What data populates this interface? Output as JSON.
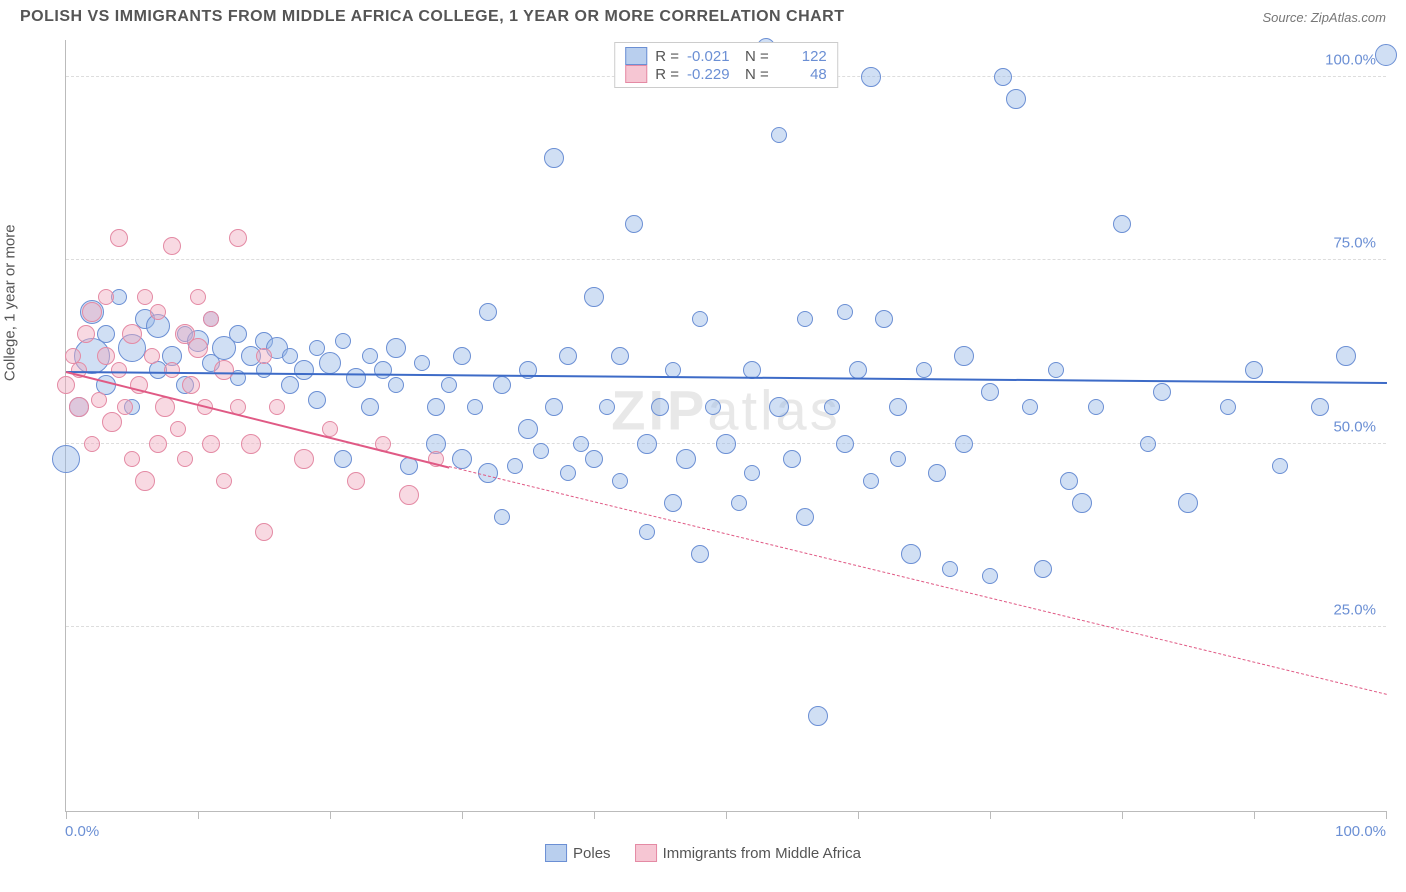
{
  "header": {
    "title": "POLISH VS IMMIGRANTS FROM MIDDLE AFRICA COLLEGE, 1 YEAR OR MORE CORRELATION CHART",
    "source_prefix": "Source: ",
    "source_name": "ZipAtlas.com"
  },
  "chart": {
    "type": "scatter",
    "y_axis_label": "College, 1 year or more",
    "watermark": "ZIPatlas",
    "background_color": "#ffffff",
    "grid_color": "#dddddd",
    "axis_color": "#bbbbbb",
    "tick_label_color": "#6b8fd4",
    "xlim": [
      0,
      100
    ],
    "ylim": [
      0,
      105
    ],
    "xticks": [
      0,
      10,
      20,
      30,
      40,
      50,
      60,
      70,
      80,
      90,
      100
    ],
    "xtick_labels": {
      "0": "0.0%",
      "100": "100.0%"
    },
    "yticks": [
      25,
      50,
      75,
      100
    ],
    "ytick_labels": {
      "25": "25.0%",
      "50": "50.0%",
      "75": "75.0%",
      "100": "100.0%"
    },
    "legend_top": {
      "rows": [
        {
          "swatch_fill": "#b9cfee",
          "swatch_stroke": "#6b8fd4",
          "r_label": "R =",
          "r_val": "-0.021",
          "n_label": "N =",
          "n_val": "122"
        },
        {
          "swatch_fill": "#f6c6d3",
          "swatch_stroke": "#e48aa4",
          "r_label": "R =",
          "r_val": "-0.229",
          "n_label": "N =",
          "n_val": "48"
        }
      ]
    },
    "legend_bottom": {
      "items": [
        {
          "swatch_fill": "#b9cfee",
          "swatch_stroke": "#6b8fd4",
          "label": "Poles"
        },
        {
          "swatch_fill": "#f6c6d3",
          "swatch_stroke": "#e48aa4",
          "label": "Immigrants from Middle Africa"
        }
      ]
    },
    "series": [
      {
        "name": "Poles",
        "color_fill": "rgba(150,185,230,0.45)",
        "color_stroke": "#6b8fd4",
        "point_stroke_width": 1.2,
        "trend_color": "#3d6bc7",
        "trend": {
          "x1": 0,
          "y1": 60,
          "x2": 100,
          "y2": 58.5,
          "dash": false
        },
        "points": [
          {
            "x": 0,
            "y": 48,
            "r": 14
          },
          {
            "x": 1,
            "y": 55,
            "r": 10
          },
          {
            "x": 2,
            "y": 62,
            "r": 18
          },
          {
            "x": 2,
            "y": 68,
            "r": 12
          },
          {
            "x": 3,
            "y": 58,
            "r": 10
          },
          {
            "x": 3,
            "y": 65,
            "r": 9
          },
          {
            "x": 4,
            "y": 70,
            "r": 8
          },
          {
            "x": 5,
            "y": 63,
            "r": 14
          },
          {
            "x": 5,
            "y": 55,
            "r": 8
          },
          {
            "x": 6,
            "y": 67,
            "r": 10
          },
          {
            "x": 7,
            "y": 60,
            "r": 9
          },
          {
            "x": 7,
            "y": 66,
            "r": 12
          },
          {
            "x": 8,
            "y": 62,
            "r": 10
          },
          {
            "x": 9,
            "y": 65,
            "r": 8
          },
          {
            "x": 9,
            "y": 58,
            "r": 9
          },
          {
            "x": 10,
            "y": 64,
            "r": 11
          },
          {
            "x": 11,
            "y": 67,
            "r": 8
          },
          {
            "x": 11,
            "y": 61,
            "r": 9
          },
          {
            "x": 12,
            "y": 63,
            "r": 12
          },
          {
            "x": 13,
            "y": 65,
            "r": 9
          },
          {
            "x": 13,
            "y": 59,
            "r": 8
          },
          {
            "x": 14,
            "y": 62,
            "r": 10
          },
          {
            "x": 15,
            "y": 64,
            "r": 9
          },
          {
            "x": 15,
            "y": 60,
            "r": 8
          },
          {
            "x": 16,
            "y": 63,
            "r": 11
          },
          {
            "x": 17,
            "y": 58,
            "r": 9
          },
          {
            "x": 17,
            "y": 62,
            "r": 8
          },
          {
            "x": 18,
            "y": 60,
            "r": 10
          },
          {
            "x": 19,
            "y": 63,
            "r": 8
          },
          {
            "x": 19,
            "y": 56,
            "r": 9
          },
          {
            "x": 20,
            "y": 61,
            "r": 11
          },
          {
            "x": 21,
            "y": 64,
            "r": 8
          },
          {
            "x": 21,
            "y": 48,
            "r": 9
          },
          {
            "x": 22,
            "y": 59,
            "r": 10
          },
          {
            "x": 23,
            "y": 62,
            "r": 8
          },
          {
            "x": 23,
            "y": 55,
            "r": 9
          },
          {
            "x": 24,
            "y": 60,
            "r": 9
          },
          {
            "x": 25,
            "y": 58,
            "r": 8
          },
          {
            "x": 25,
            "y": 63,
            "r": 10
          },
          {
            "x": 26,
            "y": 47,
            "r": 9
          },
          {
            "x": 27,
            "y": 61,
            "r": 8
          },
          {
            "x": 28,
            "y": 55,
            "r": 9
          },
          {
            "x": 28,
            "y": 50,
            "r": 10
          },
          {
            "x": 29,
            "y": 58,
            "r": 8
          },
          {
            "x": 30,
            "y": 62,
            "r": 9
          },
          {
            "x": 30,
            "y": 48,
            "r": 10
          },
          {
            "x": 31,
            "y": 55,
            "r": 8
          },
          {
            "x": 32,
            "y": 68,
            "r": 9
          },
          {
            "x": 32,
            "y": 46,
            "r": 10
          },
          {
            "x": 33,
            "y": 40,
            "r": 8
          },
          {
            "x": 33,
            "y": 58,
            "r": 9
          },
          {
            "x": 34,
            "y": 47,
            "r": 8
          },
          {
            "x": 35,
            "y": 60,
            "r": 9
          },
          {
            "x": 35,
            "y": 52,
            "r": 10
          },
          {
            "x": 36,
            "y": 49,
            "r": 8
          },
          {
            "x": 37,
            "y": 55,
            "r": 9
          },
          {
            "x": 37,
            "y": 89,
            "r": 10
          },
          {
            "x": 38,
            "y": 46,
            "r": 8
          },
          {
            "x": 38,
            "y": 62,
            "r": 9
          },
          {
            "x": 39,
            "y": 50,
            "r": 8
          },
          {
            "x": 40,
            "y": 48,
            "r": 9
          },
          {
            "x": 40,
            "y": 70,
            "r": 10
          },
          {
            "x": 41,
            "y": 55,
            "r": 8
          },
          {
            "x": 42,
            "y": 62,
            "r": 9
          },
          {
            "x": 42,
            "y": 45,
            "r": 8
          },
          {
            "x": 43,
            "y": 80,
            "r": 9
          },
          {
            "x": 44,
            "y": 50,
            "r": 10
          },
          {
            "x": 44,
            "y": 38,
            "r": 8
          },
          {
            "x": 45,
            "y": 55,
            "r": 9
          },
          {
            "x": 46,
            "y": 60,
            "r": 8
          },
          {
            "x": 46,
            "y": 42,
            "r": 9
          },
          {
            "x": 47,
            "y": 48,
            "r": 10
          },
          {
            "x": 48,
            "y": 67,
            "r": 8
          },
          {
            "x": 48,
            "y": 35,
            "r": 9
          },
          {
            "x": 49,
            "y": 55,
            "r": 8
          },
          {
            "x": 50,
            "y": 100,
            "r": 9
          },
          {
            "x": 50,
            "y": 50,
            "r": 10
          },
          {
            "x": 51,
            "y": 42,
            "r": 8
          },
          {
            "x": 52,
            "y": 60,
            "r": 9
          },
          {
            "x": 52,
            "y": 46,
            "r": 8
          },
          {
            "x": 53,
            "y": 104,
            "r": 9
          },
          {
            "x": 54,
            "y": 55,
            "r": 10
          },
          {
            "x": 54,
            "y": 92,
            "r": 8
          },
          {
            "x": 55,
            "y": 48,
            "r": 9
          },
          {
            "x": 56,
            "y": 67,
            "r": 8
          },
          {
            "x": 56,
            "y": 40,
            "r": 9
          },
          {
            "x": 57,
            "y": 13,
            "r": 10
          },
          {
            "x": 58,
            "y": 55,
            "r": 8
          },
          {
            "x": 59,
            "y": 50,
            "r": 9
          },
          {
            "x": 59,
            "y": 68,
            "r": 8
          },
          {
            "x": 60,
            "y": 60,
            "r": 9
          },
          {
            "x": 61,
            "y": 100,
            "r": 10
          },
          {
            "x": 61,
            "y": 45,
            "r": 8
          },
          {
            "x": 62,
            "y": 67,
            "r": 9
          },
          {
            "x": 63,
            "y": 48,
            "r": 8
          },
          {
            "x": 63,
            "y": 55,
            "r": 9
          },
          {
            "x": 64,
            "y": 35,
            "r": 10
          },
          {
            "x": 65,
            "y": 60,
            "r": 8
          },
          {
            "x": 66,
            "y": 46,
            "r": 9
          },
          {
            "x": 67,
            "y": 33,
            "r": 8
          },
          {
            "x": 68,
            "y": 50,
            "r": 9
          },
          {
            "x": 68,
            "y": 62,
            "r": 10
          },
          {
            "x": 70,
            "y": 32,
            "r": 8
          },
          {
            "x": 70,
            "y": 57,
            "r": 9
          },
          {
            "x": 71,
            "y": 100,
            "r": 9
          },
          {
            "x": 72,
            "y": 97,
            "r": 10
          },
          {
            "x": 73,
            "y": 55,
            "r": 8
          },
          {
            "x": 74,
            "y": 33,
            "r": 9
          },
          {
            "x": 75,
            "y": 60,
            "r": 8
          },
          {
            "x": 76,
            "y": 45,
            "r": 9
          },
          {
            "x": 77,
            "y": 42,
            "r": 10
          },
          {
            "x": 78,
            "y": 55,
            "r": 8
          },
          {
            "x": 80,
            "y": 80,
            "r": 9
          },
          {
            "x": 82,
            "y": 50,
            "r": 8
          },
          {
            "x": 83,
            "y": 57,
            "r": 9
          },
          {
            "x": 85,
            "y": 42,
            "r": 10
          },
          {
            "x": 88,
            "y": 55,
            "r": 8
          },
          {
            "x": 90,
            "y": 60,
            "r": 9
          },
          {
            "x": 92,
            "y": 47,
            "r": 8
          },
          {
            "x": 95,
            "y": 55,
            "r": 9
          },
          {
            "x": 97,
            "y": 62,
            "r": 10
          },
          {
            "x": 100,
            "y": 103,
            "r": 11
          }
        ]
      },
      {
        "name": "Immigrants from Middle Africa",
        "color_fill": "rgba(240,170,190,0.45)",
        "color_stroke": "#e48aa4",
        "point_stroke_width": 1.2,
        "trend_color": "#e05a85",
        "trend": {
          "x1": 0,
          "y1": 60,
          "x2": 29,
          "y2": 47,
          "dash": false
        },
        "trend_ext": {
          "x1": 29,
          "y1": 47,
          "x2": 100,
          "y2": 16,
          "dash": true
        },
        "points": [
          {
            "x": 0,
            "y": 58,
            "r": 9
          },
          {
            "x": 0.5,
            "y": 62,
            "r": 8
          },
          {
            "x": 1,
            "y": 55,
            "r": 10
          },
          {
            "x": 1,
            "y": 60,
            "r": 8
          },
          {
            "x": 1.5,
            "y": 65,
            "r": 9
          },
          {
            "x": 2,
            "y": 50,
            "r": 8
          },
          {
            "x": 2,
            "y": 68,
            "r": 10
          },
          {
            "x": 2.5,
            "y": 56,
            "r": 8
          },
          {
            "x": 3,
            "y": 62,
            "r": 9
          },
          {
            "x": 3,
            "y": 70,
            "r": 8
          },
          {
            "x": 3.5,
            "y": 53,
            "r": 10
          },
          {
            "x": 4,
            "y": 60,
            "r": 8
          },
          {
            "x": 4,
            "y": 78,
            "r": 9
          },
          {
            "x": 4.5,
            "y": 55,
            "r": 8
          },
          {
            "x": 5,
            "y": 65,
            "r": 10
          },
          {
            "x": 5,
            "y": 48,
            "r": 8
          },
          {
            "x": 5.5,
            "y": 58,
            "r": 9
          },
          {
            "x": 6,
            "y": 70,
            "r": 8
          },
          {
            "x": 6,
            "y": 45,
            "r": 10
          },
          {
            "x": 6.5,
            "y": 62,
            "r": 8
          },
          {
            "x": 7,
            "y": 50,
            "r": 9
          },
          {
            "x": 7,
            "y": 68,
            "r": 8
          },
          {
            "x": 7.5,
            "y": 55,
            "r": 10
          },
          {
            "x": 8,
            "y": 60,
            "r": 8
          },
          {
            "x": 8,
            "y": 77,
            "r": 9
          },
          {
            "x": 8.5,
            "y": 52,
            "r": 8
          },
          {
            "x": 9,
            "y": 65,
            "r": 10
          },
          {
            "x": 9,
            "y": 48,
            "r": 8
          },
          {
            "x": 9.5,
            "y": 58,
            "r": 9
          },
          {
            "x": 10,
            "y": 70,
            "r": 8
          },
          {
            "x": 10,
            "y": 63,
            "r": 10
          },
          {
            "x": 10.5,
            "y": 55,
            "r": 8
          },
          {
            "x": 11,
            "y": 50,
            "r": 9
          },
          {
            "x": 11,
            "y": 67,
            "r": 8
          },
          {
            "x": 12,
            "y": 60,
            "r": 10
          },
          {
            "x": 12,
            "y": 45,
            "r": 8
          },
          {
            "x": 13,
            "y": 78,
            "r": 9
          },
          {
            "x": 13,
            "y": 55,
            "r": 8
          },
          {
            "x": 14,
            "y": 50,
            "r": 10
          },
          {
            "x": 15,
            "y": 62,
            "r": 8
          },
          {
            "x": 15,
            "y": 38,
            "r": 9
          },
          {
            "x": 16,
            "y": 55,
            "r": 8
          },
          {
            "x": 18,
            "y": 48,
            "r": 10
          },
          {
            "x": 20,
            "y": 52,
            "r": 8
          },
          {
            "x": 22,
            "y": 45,
            "r": 9
          },
          {
            "x": 24,
            "y": 50,
            "r": 8
          },
          {
            "x": 26,
            "y": 43,
            "r": 10
          },
          {
            "x": 28,
            "y": 48,
            "r": 8
          }
        ]
      }
    ]
  }
}
